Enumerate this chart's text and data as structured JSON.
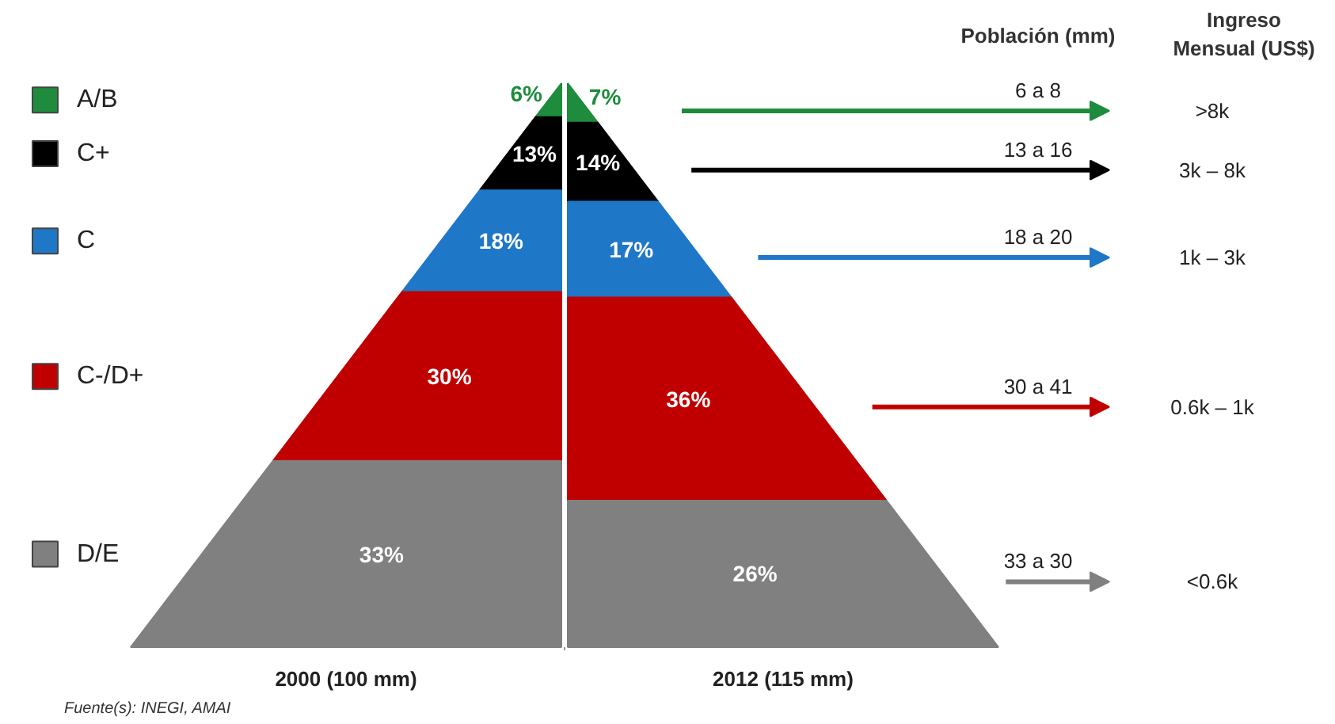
{
  "chart_data": {
    "type": "other",
    "categories": [
      "A/B",
      "C+",
      "C",
      "C-/D+",
      "D/E"
    ],
    "series": [
      {
        "name": "2000 (100 mm)",
        "colors": [
          "#1e8c3c",
          "#000000",
          "#1f77c8",
          "#c00000",
          "#808080"
        ],
        "values": [
          6,
          13,
          18,
          30,
          33
        ],
        "value_labels": [
          "6%",
          "13%",
          "18%",
          "30%",
          "33%"
        ]
      },
      {
        "name": "2012 (115 mm)",
        "colors": [
          "#1e8c3c",
          "#000000",
          "#1f77c8",
          "#c00000",
          "#808080"
        ],
        "values": [
          7,
          14,
          17,
          36,
          26
        ],
        "value_labels": [
          "7%",
          "14%",
          "17%",
          "36%",
          "26%"
        ]
      }
    ],
    "legend": "left",
    "annotations": [
      "Población (mm)",
      "6 a 8",
      "13 a 16",
      "18 a 20",
      "30 a 41",
      "33 a 30",
      "Ingreso Mensual (US$)",
      ">8k",
      "3k – 8k",
      "1k – 3k",
      "0.6k – 1k",
      "<0.6k",
      "Fuente(s): INEGI, AMAI"
    ]
  }
}
